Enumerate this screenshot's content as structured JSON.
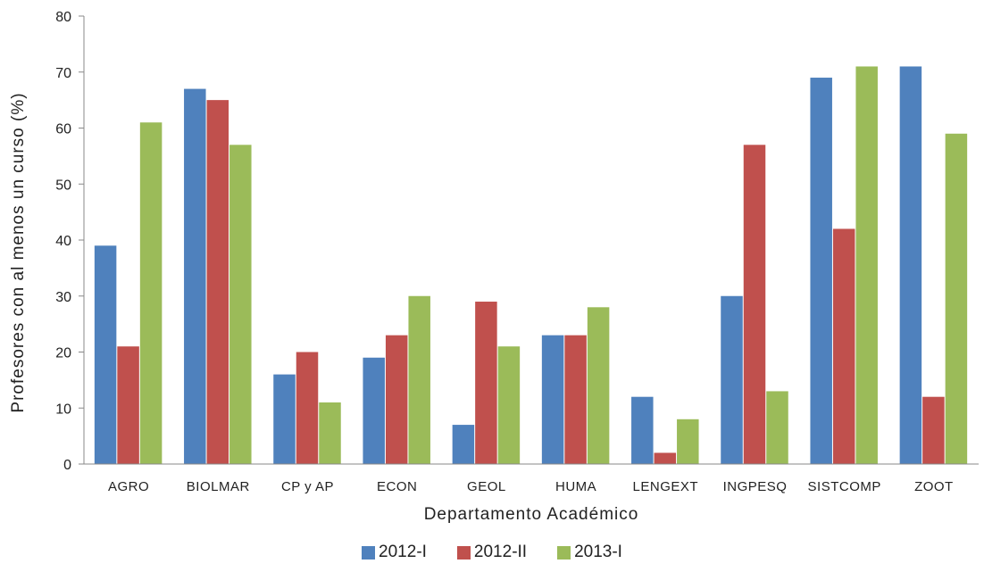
{
  "chart_data": {
    "type": "bar",
    "xlabel": "Departamento Académico",
    "ylabel": "Profesores con al menos un curso (%)",
    "ylim": [
      0,
      80
    ],
    "yticks": [
      0,
      10,
      20,
      30,
      40,
      50,
      60,
      70,
      80
    ],
    "grid": false,
    "legend_position": "bottom",
    "categories": [
      "AGRO",
      "BIOLMAR",
      "CP y AP",
      "ECON",
      "GEOL",
      "HUMA",
      "LENGEXT",
      "INGPESQ",
      "SISTCOMP",
      "ZOOT"
    ],
    "series": [
      {
        "name": "2012-I",
        "color": "#4F81BD",
        "values": [
          39,
          67,
          16,
          19,
          7,
          23,
          12,
          30,
          69,
          71
        ]
      },
      {
        "name": "2012-II",
        "color": "#C0504D",
        "values": [
          21,
          65,
          20,
          23,
          29,
          23,
          2,
          57,
          42,
          12
        ]
      },
      {
        "name": "2013-I",
        "color": "#9BBB59",
        "values": [
          61,
          57,
          11,
          30,
          21,
          28,
          8,
          13,
          71,
          59
        ]
      }
    ]
  }
}
